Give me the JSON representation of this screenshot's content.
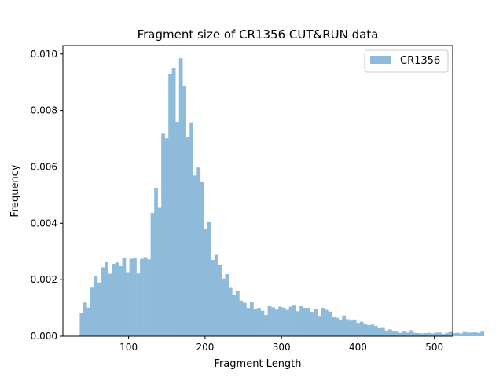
{
  "chart_data": {
    "type": "histogram",
    "title": "Fragment size of CR1356 CUT&RUN data",
    "xlabel": "Fragment Length",
    "ylabel": "Frequency",
    "xlim": [
      14,
      524
    ],
    "ylim": [
      0,
      0.0103
    ],
    "xticks": [
      100,
      200,
      300,
      400,
      500
    ],
    "yticks": [
      0.0,
      0.002,
      0.004,
      0.006,
      0.008,
      0.01
    ],
    "xtick_labels": [
      "100",
      "200",
      "300",
      "400",
      "500"
    ],
    "ytick_labels": [
      "0.000",
      "0.002",
      "0.004",
      "0.006",
      "0.008",
      "0.010"
    ],
    "legend_position": "top-right",
    "series": [
      {
        "name": "CR1356",
        "color": "#8fbbdb",
        "bin_start": 36,
        "bin_width": 4.64,
        "values": [
          0.00083,
          0.00119,
          0.00101,
          0.00172,
          0.00212,
          0.0019,
          0.00244,
          0.00264,
          0.00221,
          0.00256,
          0.00261,
          0.00248,
          0.00278,
          0.00227,
          0.00274,
          0.00278,
          0.00222,
          0.00274,
          0.0028,
          0.00272,
          0.00437,
          0.00526,
          0.00455,
          0.0072,
          0.00701,
          0.0093,
          0.00951,
          0.0076,
          0.00985,
          0.00888,
          0.00705,
          0.00758,
          0.0057,
          0.00598,
          0.00546,
          0.0038,
          0.00404,
          0.0027,
          0.00288,
          0.00253,
          0.00204,
          0.0022,
          0.00171,
          0.00145,
          0.00159,
          0.00126,
          0.00118,
          0.001,
          0.00121,
          0.00096,
          0.001,
          0.0009,
          0.00075,
          0.00107,
          0.00102,
          0.00094,
          0.00104,
          0.00101,
          0.00093,
          0.00104,
          0.00111,
          0.00088,
          0.00107,
          0.001,
          0.001,
          0.00086,
          0.00095,
          0.00072,
          0.001,
          0.00093,
          0.00087,
          0.00069,
          0.00065,
          0.00059,
          0.00073,
          0.0006,
          0.00055,
          0.00059,
          0.00047,
          0.00051,
          0.00042,
          0.00039,
          0.00041,
          0.00036,
          0.00029,
          0.00032,
          0.0002,
          0.00024,
          0.00018,
          0.00016,
          0.00012,
          0.00018,
          0.00013,
          0.00021,
          0.00012,
          0.00011,
          0.0001,
          0.00011,
          0.00012,
          0.0001,
          0.00013,
          0.00013,
          8e-05,
          0.00012,
          0.00015,
          0.00011,
          0.00012,
          0.0001,
          0.00015,
          0.00013,
          0.00013,
          0.00014,
          0.00012,
          0.00016
        ]
      }
    ]
  }
}
